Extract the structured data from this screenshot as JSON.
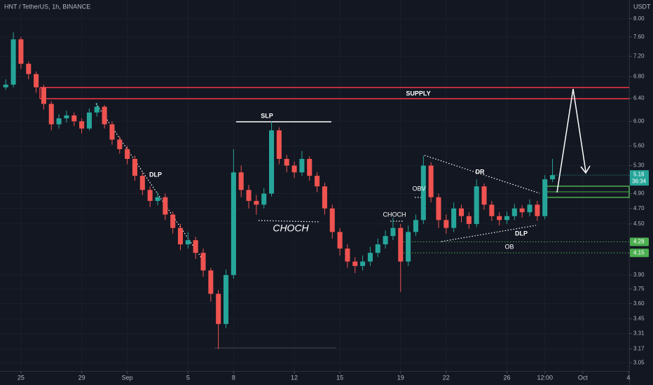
{
  "chart_data": {
    "type": "candlestick",
    "title": "HNT / TetherUS, 1h, BINANCE",
    "currency": "USDT",
    "x": [
      -1.0,
      -0.5,
      0,
      0.5,
      1,
      1.5,
      2,
      2.5,
      3,
      3.5,
      4,
      4.5,
      5,
      5.5,
      6,
      6.5,
      7,
      7.5,
      8,
      8.5,
      9,
      9.5,
      10,
      10.5,
      11,
      11.5,
      12,
      12.5,
      13,
      13.5,
      14,
      14.5,
      15,
      15.5,
      16,
      16.5,
      17,
      17.5,
      18,
      18.5,
      19,
      19.5,
      20,
      20.5,
      21,
      21.5,
      22,
      22.5,
      23,
      23.5,
      24,
      24.5,
      25,
      25.5,
      26,
      26.5,
      27,
      27.5,
      28,
      28.5,
      29,
      29.5,
      30,
      30.5,
      31,
      31.5,
      32,
      32.5,
      33,
      33.5,
      34,
      34.5,
      35
    ],
    "open": [
      6.6,
      6.65,
      7.55,
      7.05,
      6.85,
      6.6,
      6.3,
      5.95,
      6.05,
      6.1,
      6.0,
      5.88,
      6.15,
      6.25,
      5.95,
      5.7,
      5.55,
      5.4,
      5.15,
      4.95,
      4.8,
      4.85,
      4.62,
      4.45,
      4.25,
      4.3,
      4.15,
      3.95,
      3.7,
      3.4,
      3.9,
      5.2,
      4.95,
      4.8,
      4.75,
      4.9,
      5.85,
      5.4,
      5.3,
      5.2,
      5.4,
      5.15,
      5.0,
      4.7,
      4.4,
      4.2,
      4.05,
      4.0,
      4.05,
      4.15,
      4.25,
      4.35,
      4.45,
      4.05,
      4.4,
      4.55,
      5.3,
      4.85,
      4.55,
      4.45,
      4.7,
      4.6,
      4.5,
      5.0,
      4.75,
      4.6,
      4.55,
      4.6,
      4.7,
      4.65,
      4.75,
      4.6,
      5.1
    ],
    "high": [
      6.75,
      7.7,
      7.6,
      7.1,
      6.9,
      6.65,
      6.35,
      6.12,
      6.18,
      6.15,
      6.05,
      6.22,
      6.32,
      6.28,
      6.0,
      5.75,
      5.6,
      5.45,
      5.2,
      5.0,
      4.92,
      4.9,
      4.66,
      4.5,
      4.4,
      4.34,
      4.2,
      3.98,
      3.74,
      3.96,
      5.55,
      5.3,
      5.02,
      4.88,
      4.98,
      6.0,
      5.9,
      5.46,
      5.36,
      5.52,
      5.44,
      5.2,
      5.05,
      4.75,
      4.45,
      4.25,
      4.1,
      4.12,
      4.22,
      4.32,
      4.42,
      4.58,
      4.5,
      4.48,
      4.62,
      5.45,
      5.35,
      4.9,
      4.62,
      4.78,
      4.75,
      4.65,
      5.1,
      5.04,
      4.8,
      4.65,
      4.66,
      4.76,
      4.74,
      4.82,
      4.8,
      5.16,
      5.4
    ],
    "low": [
      6.55,
      6.6,
      6.95,
      6.75,
      6.5,
      6.2,
      5.85,
      5.88,
      5.98,
      5.92,
      5.8,
      5.85,
      6.08,
      5.88,
      5.62,
      5.48,
      5.32,
      5.08,
      4.88,
      4.72,
      4.74,
      4.55,
      4.38,
      4.18,
      4.2,
      4.08,
      3.88,
      3.62,
      3.17,
      3.36,
      3.86,
      4.85,
      4.7,
      4.62,
      4.7,
      4.86,
      5.32,
      5.2,
      5.12,
      5.15,
      5.08,
      4.92,
      4.62,
      4.32,
      4.12,
      3.98,
      3.92,
      3.95,
      4.0,
      4.1,
      4.2,
      4.3,
      3.72,
      4.0,
      4.35,
      4.5,
      4.78,
      4.45,
      4.38,
      4.4,
      4.52,
      4.44,
      4.46,
      4.68,
      4.54,
      4.48,
      4.5,
      4.55,
      4.58,
      4.6,
      4.54,
      4.56,
      5.06
    ],
    "close": [
      6.65,
      7.55,
      7.05,
      6.85,
      6.6,
      6.3,
      5.95,
      6.05,
      6.1,
      6.0,
      5.88,
      6.15,
      6.25,
      5.95,
      5.7,
      5.55,
      5.4,
      5.15,
      4.95,
      4.8,
      4.85,
      4.62,
      4.45,
      4.25,
      4.3,
      4.15,
      3.95,
      3.7,
      3.4,
      3.9,
      5.2,
      4.95,
      4.8,
      4.75,
      4.9,
      5.85,
      5.4,
      5.3,
      5.2,
      5.4,
      5.15,
      5.0,
      4.7,
      4.4,
      4.2,
      4.05,
      4.0,
      4.05,
      4.15,
      4.25,
      4.35,
      4.45,
      4.05,
      4.4,
      4.55,
      5.3,
      4.85,
      4.55,
      4.45,
      4.7,
      4.6,
      4.5,
      5.0,
      4.75,
      4.6,
      4.55,
      4.6,
      4.7,
      4.65,
      4.75,
      4.6,
      5.1,
      5.16
    ],
    "up_color": "#26a69a",
    "down_color": "#ef5350",
    "xlim": [
      -1.38,
      40.05
    ],
    "xticks": [
      {
        "value": 0,
        "label": "25"
      },
      {
        "value": 4,
        "label": "29"
      },
      {
        "value": 7,
        "label": "Sep"
      },
      {
        "value": 11,
        "label": "5"
      },
      {
        "value": 14,
        "label": "8"
      },
      {
        "value": 18,
        "label": "12"
      },
      {
        "value": 21,
        "label": "15"
      },
      {
        "value": 25,
        "label": "19"
      },
      {
        "value": 28,
        "label": "22"
      },
      {
        "value": 32,
        "label": "26"
      },
      {
        "value": 34.5,
        "label": "12:00"
      },
      {
        "value": 37,
        "label": "Oct"
      },
      {
        "value": 40,
        "label": "4"
      }
    ],
    "ylim": [
      2.98,
      8.43
    ],
    "log_scale": true,
    "yticks": [
      {
        "value": 8,
        "label": "8.00"
      },
      {
        "value": 7.6,
        "label": "7.60"
      },
      {
        "value": 7.2,
        "label": "7.20"
      },
      {
        "value": 6.8,
        "label": "6.80"
      },
      {
        "value": 6.4,
        "label": "6.40"
      },
      {
        "value": 6,
        "label": "6.00"
      },
      {
        "value": 5.6,
        "label": "5.60"
      },
      {
        "value": 5.3,
        "label": "5.30"
      },
      {
        "value": 4.9,
        "label": "4.90"
      },
      {
        "value": 4.7,
        "label": "4.70"
      },
      {
        "value": 4.5,
        "label": "4.50"
      },
      {
        "value": 3.9,
        "label": "3.90"
      },
      {
        "value": 3.75,
        "label": "3.75"
      },
      {
        "value": 3.6,
        "label": "3.60"
      },
      {
        "value": 3.45,
        "label": "3.45"
      },
      {
        "value": 3.31,
        "label": "3.31"
      },
      {
        "value": 3.17,
        "label": "3.17"
      },
      {
        "value": 3.05,
        "label": "3.05"
      }
    ],
    "grid": true,
    "last_price": {
      "value": 5.16,
      "label": "5.16"
    },
    "countdown": "36:34",
    "price_lines": [
      {
        "value": 4.28,
        "label": "4.28"
      },
      {
        "value": 4.15,
        "label": "4.15"
      }
    ],
    "annotations": [
      "SUPPLY",
      "SLP",
      "DLP",
      "CHOCH",
      "CHOCH",
      "OBV",
      "DR",
      "DLP",
      "OB"
    ]
  }
}
